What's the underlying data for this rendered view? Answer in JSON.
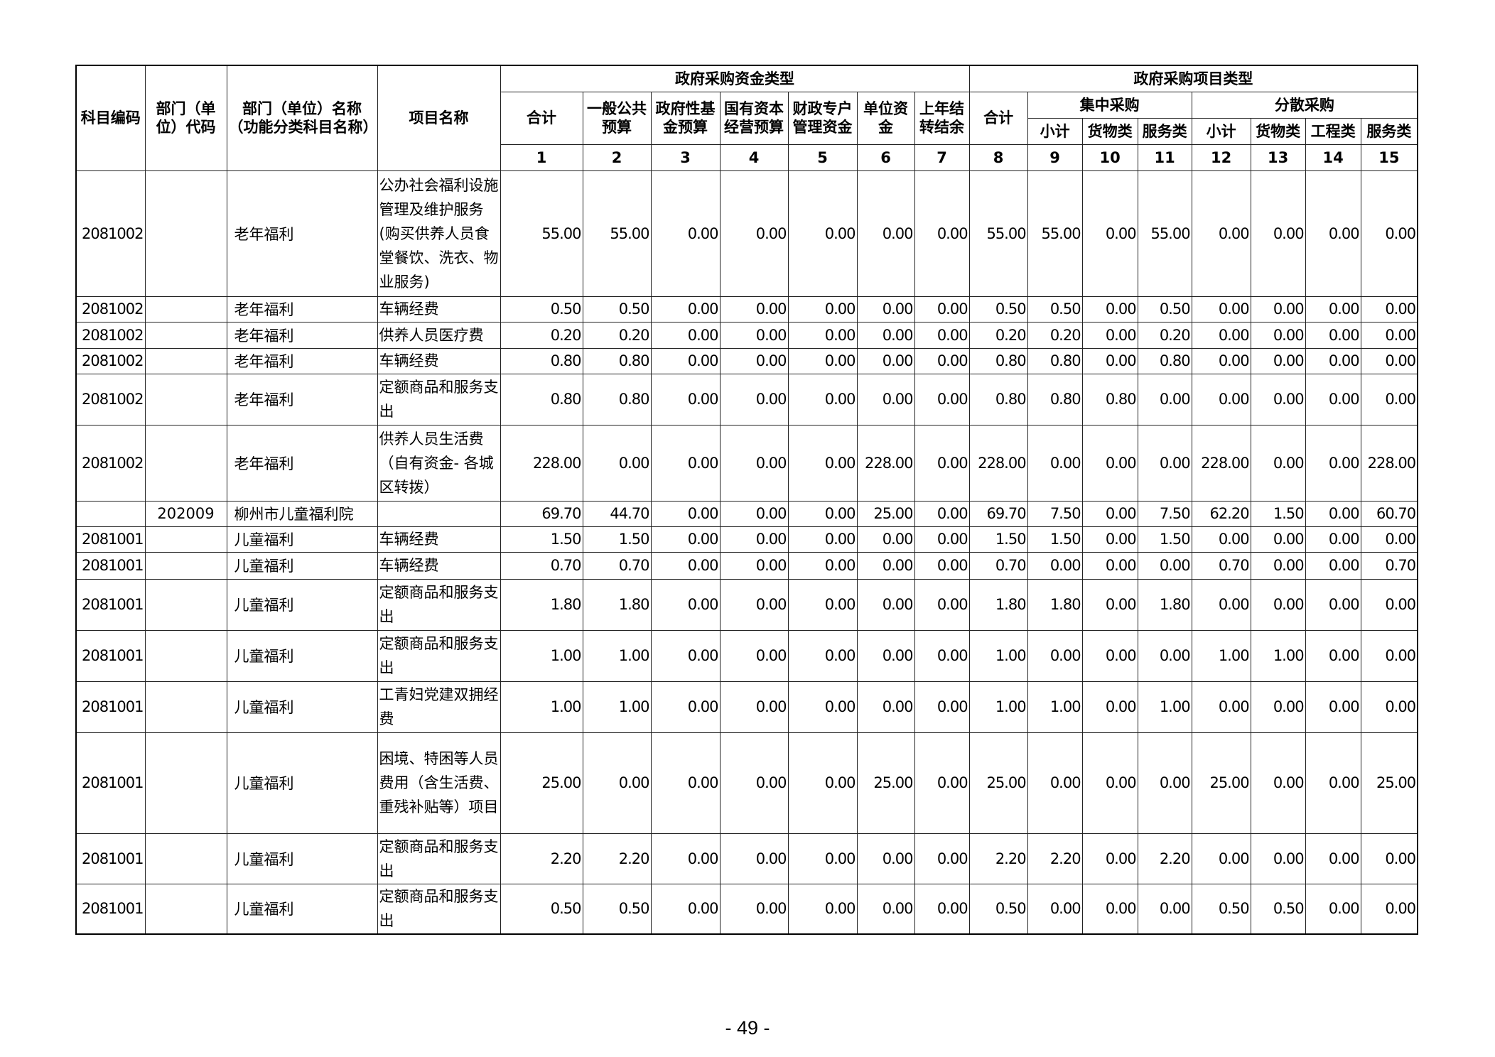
{
  "header": {
    "col_code": "科目编码",
    "col_dept_code": "部门（单位）代码",
    "col_dept_name": "部门（单位）名称（功能分类科目名称）",
    "col_item": "项目名称",
    "group_fund": "政府采购资金类型",
    "group_project": "政府采购项目类型",
    "fund_cols": [
      "合计",
      "一般公共预算",
      "政府性基金预算",
      "国有资本经营预算",
      "财政专户管理资金",
      "单位资金",
      "上年结转结余"
    ],
    "project_total": "合计",
    "central": "集中采购",
    "dispersed": "分散采购",
    "central_cols": [
      "小计",
      "货物类",
      "服务类"
    ],
    "dispersed_cols": [
      "小计",
      "货物类",
      "工程类",
      "服务类"
    ],
    "numbers": [
      "1",
      "2",
      "3",
      "4",
      "5",
      "6",
      "7",
      "8",
      "9",
      "10",
      "11",
      "12",
      "13",
      "14",
      "15"
    ]
  },
  "rows": [
    {
      "code": "2081002",
      "dept_code": "",
      "name": "老年福利",
      "item": "公办社会福利设施管理及维护服务(购买供养人员食堂餐饮、洗衣、物业服务)",
      "values": [
        "55.00",
        "55.00",
        "0.00",
        "0.00",
        "0.00",
        "0.00",
        "0.00",
        "55.00",
        "55.00",
        "0.00",
        "55.00",
        "0.00",
        "0.00",
        "0.00",
        "0.00"
      ]
    },
    {
      "code": "2081002",
      "dept_code": "",
      "name": "老年福利",
      "item": "车辆经费",
      "values": [
        "0.50",
        "0.50",
        "0.00",
        "0.00",
        "0.00",
        "0.00",
        "0.00",
        "0.50",
        "0.50",
        "0.00",
        "0.50",
        "0.00",
        "0.00",
        "0.00",
        "0.00"
      ]
    },
    {
      "code": "2081002",
      "dept_code": "",
      "name": "老年福利",
      "item": "供养人员医疗费",
      "values": [
        "0.20",
        "0.20",
        "0.00",
        "0.00",
        "0.00",
        "0.00",
        "0.00",
        "0.20",
        "0.20",
        "0.00",
        "0.20",
        "0.00",
        "0.00",
        "0.00",
        "0.00"
      ]
    },
    {
      "code": "2081002",
      "dept_code": "",
      "name": "老年福利",
      "item": "车辆经费",
      "values": [
        "0.80",
        "0.80",
        "0.00",
        "0.00",
        "0.00",
        "0.00",
        "0.00",
        "0.80",
        "0.80",
        "0.00",
        "0.80",
        "0.00",
        "0.00",
        "0.00",
        "0.00"
      ]
    },
    {
      "code": "2081002",
      "dept_code": "",
      "name": "老年福利",
      "item": "定额商品和服务支出",
      "values": [
        "0.80",
        "0.80",
        "0.00",
        "0.00",
        "0.00",
        "0.00",
        "0.00",
        "0.80",
        "0.80",
        "0.80",
        "0.00",
        "0.00",
        "0.00",
        "0.00",
        "0.00"
      ]
    },
    {
      "code": "2081002",
      "dept_code": "",
      "name": "老年福利",
      "item": "供养人员生活费（自有资金- 各城区转拨）",
      "values": [
        "228.00",
        "0.00",
        "0.00",
        "0.00",
        "0.00",
        "228.00",
        "0.00",
        "228.00",
        "0.00",
        "0.00",
        "0.00",
        "228.00",
        "0.00",
        "0.00",
        "228.00"
      ]
    },
    {
      "code": "",
      "dept_code": "202009",
      "name": "柳州市儿童福利院",
      "item": "",
      "values": [
        "69.70",
        "44.70",
        "0.00",
        "0.00",
        "0.00",
        "25.00",
        "0.00",
        "69.70",
        "7.50",
        "0.00",
        "7.50",
        "62.20",
        "1.50",
        "0.00",
        "60.70"
      ]
    },
    {
      "code": "2081001",
      "dept_code": "",
      "name": "儿童福利",
      "item": "车辆经费",
      "values": [
        "1.50",
        "1.50",
        "0.00",
        "0.00",
        "0.00",
        "0.00",
        "0.00",
        "1.50",
        "1.50",
        "0.00",
        "1.50",
        "0.00",
        "0.00",
        "0.00",
        "0.00"
      ]
    },
    {
      "code": "2081001",
      "dept_code": "",
      "name": "儿童福利",
      "item": "车辆经费",
      "values": [
        "0.70",
        "0.70",
        "0.00",
        "0.00",
        "0.00",
        "0.00",
        "0.00",
        "0.70",
        "0.00",
        "0.00",
        "0.00",
        "0.70",
        "0.00",
        "0.00",
        "0.70"
      ]
    },
    {
      "code": "2081001",
      "dept_code": "",
      "name": "儿童福利",
      "item": "定额商品和服务支出",
      "values": [
        "1.80",
        "1.80",
        "0.00",
        "0.00",
        "0.00",
        "0.00",
        "0.00",
        "1.80",
        "1.80",
        "0.00",
        "1.80",
        "0.00",
        "0.00",
        "0.00",
        "0.00"
      ]
    },
    {
      "code": "2081001",
      "dept_code": "",
      "name": "儿童福利",
      "item": "定额商品和服务支出",
      "values": [
        "1.00",
        "1.00",
        "0.00",
        "0.00",
        "0.00",
        "0.00",
        "0.00",
        "1.00",
        "0.00",
        "0.00",
        "0.00",
        "1.00",
        "1.00",
        "0.00",
        "0.00"
      ]
    },
    {
      "code": "2081001",
      "dept_code": "",
      "name": "儿童福利",
      "item": "工青妇党建双拥经费",
      "values": [
        "1.00",
        "1.00",
        "0.00",
        "0.00",
        "0.00",
        "0.00",
        "0.00",
        "1.00",
        "1.00",
        "0.00",
        "1.00",
        "0.00",
        "0.00",
        "0.00",
        "0.00"
      ]
    },
    {
      "code": "2081001",
      "dept_code": "",
      "name": "儿童福利",
      "item": "困境、特困等人员费用（含生活费、重残补贴等）项目",
      "values": [
        "25.00",
        "0.00",
        "0.00",
        "0.00",
        "0.00",
        "25.00",
        "0.00",
        "25.00",
        "0.00",
        "0.00",
        "0.00",
        "25.00",
        "0.00",
        "0.00",
        "25.00"
      ]
    },
    {
      "code": "2081001",
      "dept_code": "",
      "name": "儿童福利",
      "item": "定额商品和服务支出",
      "values": [
        "2.20",
        "2.20",
        "0.00",
        "0.00",
        "0.00",
        "0.00",
        "0.00",
        "2.20",
        "2.20",
        "0.00",
        "2.20",
        "0.00",
        "0.00",
        "0.00",
        "0.00"
      ]
    },
    {
      "code": "2081001",
      "dept_code": "",
      "name": "儿童福利",
      "item": "定额商品和服务支出",
      "values": [
        "0.50",
        "0.50",
        "0.00",
        "0.00",
        "0.00",
        "0.00",
        "0.00",
        "0.50",
        "0.00",
        "0.00",
        "0.00",
        "0.50",
        "0.50",
        "0.00",
        "0.00"
      ]
    }
  ],
  "page_number": "- 49 -"
}
